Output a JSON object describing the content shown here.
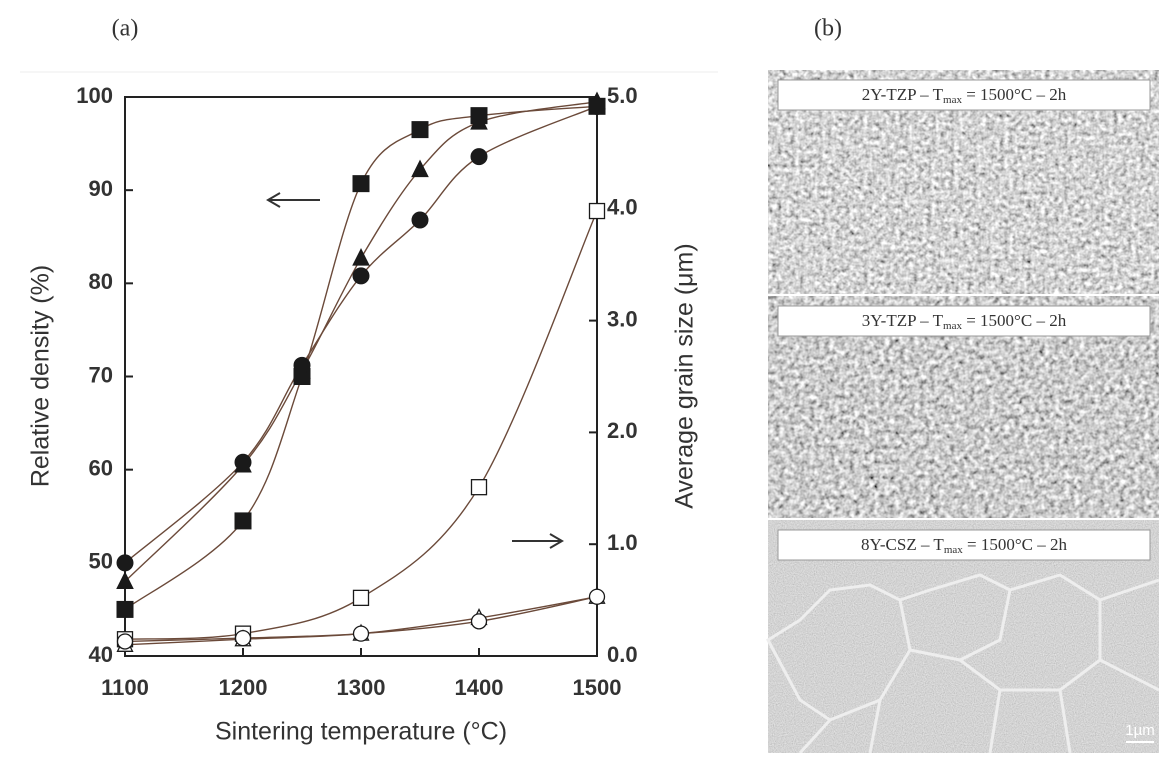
{
  "chart_data": {
    "type": "line",
    "panel_label": "(a)",
    "x_label": "Sintering temperature (°C)",
    "y_label": "Relative density (%)",
    "y2_label": "Average grain size (μm)",
    "xlim": [
      1100,
      1500
    ],
    "xticks": [
      1100,
      1200,
      1300,
      1400,
      1500
    ],
    "ylim": [
      40,
      100
    ],
    "yticks": [
      40,
      50,
      60,
      70,
      80,
      90,
      100
    ],
    "y2lim": [
      0,
      5
    ],
    "y2ticks": [
      {
        "value": 0,
        "label": "0.0"
      },
      {
        "value": 1,
        "label": "1.0"
      },
      {
        "value": 2,
        "label": "2.0"
      },
      {
        "value": 3,
        "label": "3.0"
      },
      {
        "value": 4,
        "label": "4.0"
      },
      {
        "value": 5,
        "label": "5.0"
      }
    ],
    "series": [
      {
        "marker": "square",
        "filled": true,
        "axis": "y",
        "color": "#1a1a1a",
        "x": [
          1100,
          1200,
          1250,
          1300,
          1350,
          1400,
          1500
        ],
        "values": [
          45,
          54.5,
          70,
          90.7,
          96.5,
          98,
          99
        ]
      },
      {
        "marker": "triangle",
        "filled": true,
        "axis": "y",
        "color": "#1a1a1a",
        "x": [
          1100,
          1200,
          1250,
          1300,
          1350,
          1400,
          1500
        ],
        "values": [
          48,
          60.5,
          70.6,
          82.7,
          92.2,
          97.3,
          99.5
        ]
      },
      {
        "marker": "circle",
        "filled": true,
        "axis": "y",
        "color": "#1a1a1a",
        "x": [
          1100,
          1200,
          1250,
          1300,
          1350,
          1400,
          1500
        ],
        "values": [
          50,
          60.8,
          71.2,
          80.8,
          86.8,
          93.6,
          99
        ]
      },
      {
        "marker": "square",
        "filled": false,
        "axis": "y2",
        "color": "#1a1a1a",
        "x": [
          1100,
          1200,
          1300,
          1400,
          1500
        ],
        "values": [
          0.15,
          0.2,
          0.52,
          1.51,
          3.98
        ]
      },
      {
        "marker": "triangle",
        "filled": false,
        "axis": "y2",
        "color": "#1a1a1a",
        "x": [
          1100,
          1200,
          1300,
          1400,
          1500
        ],
        "values": [
          0.1,
          0.15,
          0.2,
          0.34,
          0.53
        ]
      },
      {
        "marker": "circle",
        "filled": false,
        "axis": "y2",
        "color": "#1a1a1a",
        "x": [
          1100,
          1200,
          1300,
          1400,
          1500
        ],
        "values": [
          0.13,
          0.16,
          0.2,
          0.31,
          0.53
        ]
      }
    ]
  },
  "micrographs": {
    "panel_label": "(b)",
    "images": [
      {
        "caption": "2Y-TZP – T",
        "sub": "max",
        "rest": " = 1500°C – 2h"
      },
      {
        "caption": "3Y-TZP – T",
        "sub": "max",
        "rest": " = 1500°C – 2h"
      },
      {
        "caption": "8Y-CSZ – T",
        "sub": "max",
        "rest": " = 1500°C – 2h"
      }
    ],
    "scale_bar": "1µm"
  }
}
